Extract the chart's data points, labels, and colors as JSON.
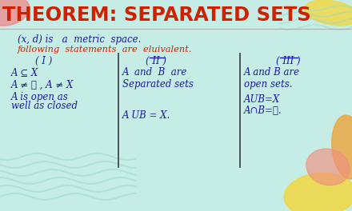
{
  "bg_color": "#c5ede6",
  "title_text": "THEOREM: SEPARATED SETS",
  "title_color": "#cc2200",
  "title_fontsize": 17.5,
  "line1": "(x, d) is   a  metric  space.",
  "line2": "following  statements  are  eluivalent.",
  "line2_color": "#cc2200",
  "col1_header": "( I )",
  "col1_lines": [
    "A ⊆ X",
    "A ≠ ∅ , A ≠ X",
    "A is open as",
    "well as closed"
  ],
  "col2_header": "( II )",
  "col2_lines": [
    "A  and  B  are",
    "Separated sets",
    "",
    "A UB = X."
  ],
  "col3_header": "( III )",
  "col3_lines": [
    "A and B are",
    "open sets.",
    "AUB=X",
    "A∩B=∅."
  ],
  "body_color": "#1a1a99",
  "divider_color": "#444455",
  "figsize": [
    4.4,
    2.64
  ],
  "dpi": 100,
  "title_bar_height": 42,
  "wavy_color": "#9dd8cc",
  "pink_blob_color": "#f08888",
  "yellow_blob_color": "#f0d840",
  "orange_blob_color": "#f0a030",
  "salmon_blob_color": "#f09080"
}
